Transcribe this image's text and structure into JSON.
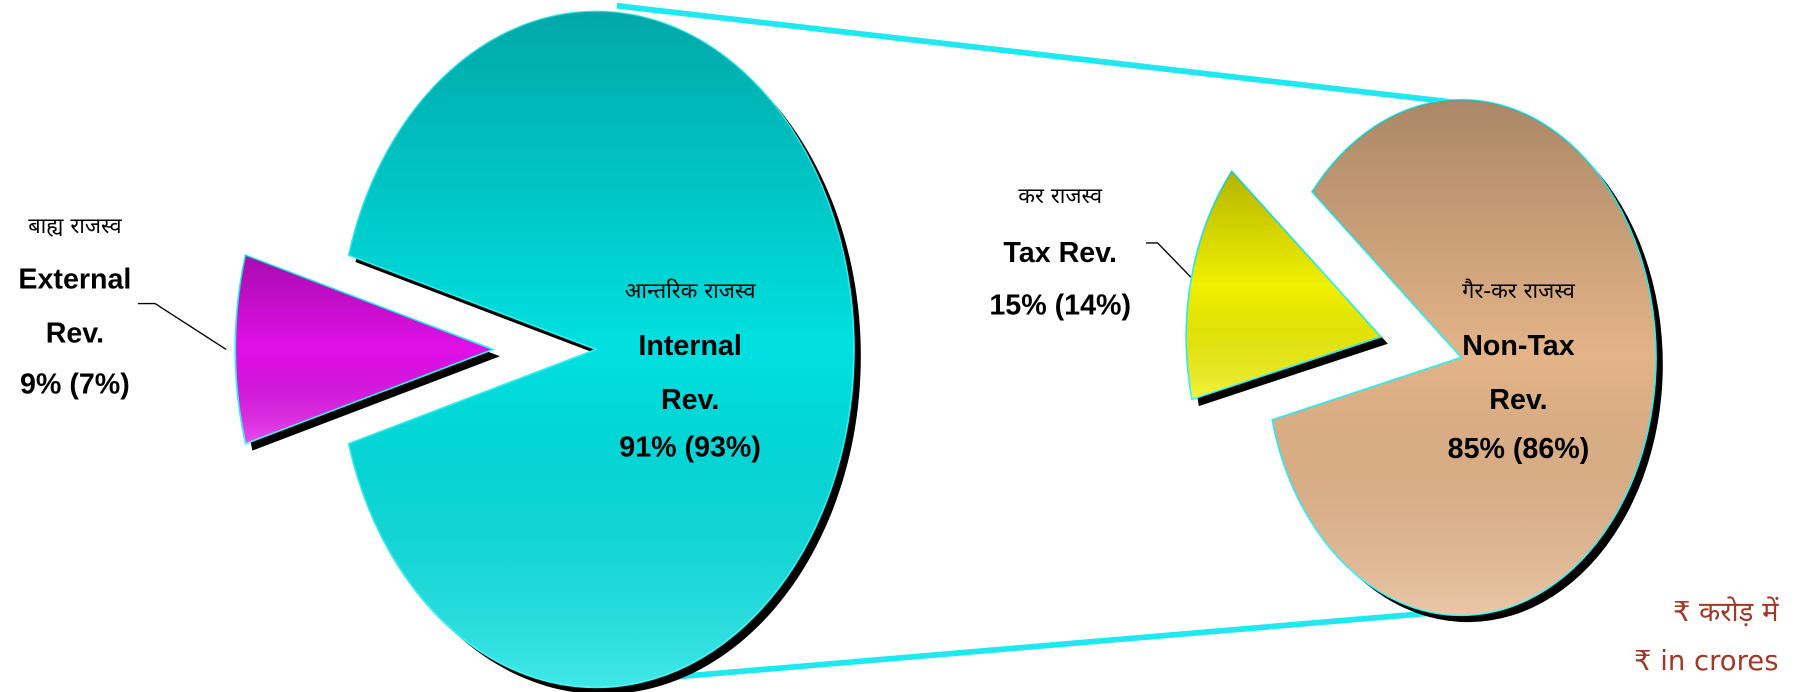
{
  "chart_data": [
    {
      "type": "pie",
      "categories": [
        "External Rev.",
        "Internal Rev."
      ],
      "categories_hi": [
        "बाह्य राजस्व",
        "आन्तरिक राजस्व"
      ],
      "values": [
        9,
        91
      ],
      "value_labels": [
        "9% (7%)",
        "91% (93%)"
      ],
      "colors": [
        "#e010e8",
        "#00e0e0"
      ]
    },
    {
      "type": "pie",
      "categories": [
        "Tax Rev.",
        "Non-Tax Rev."
      ],
      "categories_hi": [
        "कर राजस्व",
        "गैर-कर राजस्व"
      ],
      "values": [
        15,
        85
      ],
      "value_labels": [
        "15% (14%)",
        "85% (86%)"
      ],
      "colors": [
        "#f0f000",
        "#e4b488"
      ]
    }
  ],
  "unit_notes": [
    "₹ करोड़ में",
    "₹ in crores"
  ]
}
